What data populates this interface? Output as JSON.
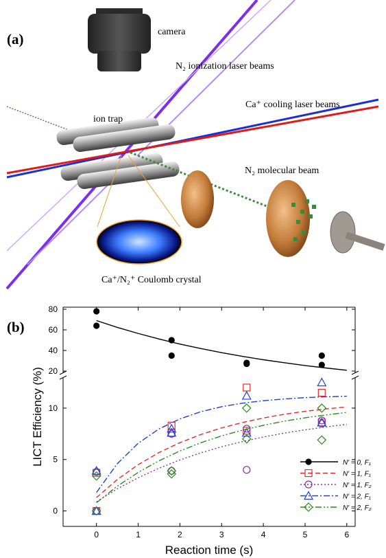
{
  "figure": {
    "panel_a": {
      "label": "(a)",
      "labels": {
        "camera": "camera",
        "ionization": "N₂ ionization laser beams",
        "cooling": "Ca⁺ cooling laser beams",
        "trap": "ion trap",
        "molecular": "N₂ molecular beam",
        "crystal": "Ca⁺/N₂⁺ Coulomb crystal"
      }
    },
    "panel_b": {
      "label": "(b)"
    }
  },
  "chart_data": {
    "type": "scatter",
    "x_label": "Reaction time (s)",
    "y_label": "LICT Efficiency (%)",
    "xlim": [
      -0.8,
      6.2
    ],
    "xticks": [
      0,
      1,
      2,
      3,
      4,
      5,
      6
    ],
    "ylim": [
      -1.5,
      82
    ],
    "y_break": [
      13,
      18
    ],
    "yticks": [
      0,
      5,
      10,
      20,
      40,
      60,
      80
    ],
    "legend": "lower right",
    "fit_x": [
      0,
      0.5,
      1,
      1.5,
      2,
      2.5,
      3,
      3.5,
      4,
      4.5,
      5,
      5.5,
      6
    ],
    "series": [
      {
        "name": "N′ = 0, F₁",
        "color": "#000000",
        "marker": "filled-circle",
        "dash": "none",
        "x": [
          0,
          0,
          1.8,
          1.8,
          3.6,
          3.6,
          5.4,
          5.4
        ],
        "values": [
          78,
          64,
          50,
          35,
          28,
          27,
          35,
          26
        ],
        "fit_values": [
          69,
          62.4,
          56.5,
          51.1,
          46.2,
          41.9,
          37.9,
          34.3,
          31.0,
          28.1,
          25.4,
          23.0,
          20.8
        ]
      },
      {
        "name": "N′ = 1, F₁",
        "color": "#e8292b",
        "marker": "square",
        "dash": "7,4",
        "x": [
          0,
          0,
          1.8,
          1.8,
          3.6,
          3.6,
          5.4,
          5.4
        ],
        "values": [
          0,
          3.7,
          8.3,
          7.6,
          12,
          7.8,
          11.5,
          8.6
        ],
        "fit_values": [
          1.3,
          3.06,
          4.5,
          5.68,
          6.64,
          7.43,
          8.08,
          8.6,
          9.04,
          9.4,
          9.69,
          9.92,
          10.12
        ]
      },
      {
        "name": "N′ = 1, F₂",
        "color": "#8b2fa0",
        "marker": "circle",
        "dash": "2,3",
        "x": [
          0,
          0,
          1.8,
          1.8,
          3.6,
          3.6,
          5.4,
          5.4
        ],
        "values": [
          0,
          3.8,
          7.5,
          3.9,
          8,
          4,
          8.8,
          8.5
        ],
        "fit_values": [
          0.9,
          2.15,
          3.23,
          4.16,
          4.96,
          5.65,
          6.24,
          6.75,
          7.19,
          7.57,
          7.89,
          8.17,
          8.42
        ]
      },
      {
        "name": "N′ = 2, F₁",
        "color": "#1f3fd6",
        "marker": "triangle",
        "dash": "9,3,2,3",
        "x": [
          0,
          0,
          1.8,
          1.8,
          3.6,
          3.6,
          5.4,
          5.4
        ],
        "values": [
          0,
          3.9,
          8.0,
          7.6,
          11.2,
          7.6,
          12.5,
          8.6
        ],
        "fit_values": [
          1.8,
          4.6,
          6.58,
          7.98,
          8.95,
          9.65,
          10.14,
          10.48,
          10.72,
          10.89,
          11.02,
          11.1,
          11.16
        ]
      },
      {
        "name": "N′ = 2, F₂",
        "color": "#2a8a1a",
        "marker": "diamond",
        "dash": "9,3,2,3,2,3",
        "x": [
          0,
          0,
          1.8,
          1.8,
          3.6,
          3.6,
          5.4,
          5.4
        ],
        "values": [
          0,
          3.4,
          3.9,
          3.6,
          10,
          7.0,
          10,
          6.9
        ],
        "fit_values": [
          0.8,
          2.41,
          3.75,
          4.88,
          5.83,
          6.63,
          7.3,
          7.86,
          8.33,
          8.73,
          9.06,
          9.34,
          9.58
        ]
      }
    ]
  }
}
